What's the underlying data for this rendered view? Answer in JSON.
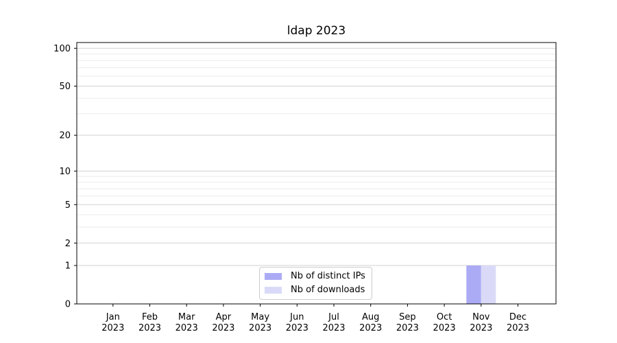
{
  "chart_data": {
    "type": "bar",
    "title": "ldap 2023",
    "categories": [
      "Jan 2023",
      "Feb 2023",
      "Mar 2023",
      "Apr 2023",
      "May 2023",
      "Jun 2023",
      "Jul 2023",
      "Aug 2023",
      "Sep 2023",
      "Oct 2023",
      "Nov 2023",
      "Dec 2023"
    ],
    "series": [
      {
        "name": "Nb of distinct IPs",
        "color": "#ababf5",
        "values": [
          0,
          0,
          0,
          0,
          0,
          0,
          0,
          0,
          0,
          0,
          1,
          0
        ]
      },
      {
        "name": "Nb of downloads",
        "color": "#dadaf8",
        "values": [
          0,
          0,
          0,
          0,
          0,
          0,
          0,
          0,
          0,
          0,
          1,
          0
        ]
      }
    ],
    "xlabel": "",
    "ylabel": "",
    "yscale": "log1p",
    "ylim": [
      0,
      111
    ],
    "y_major_ticks": [
      0,
      1,
      2,
      5,
      10,
      20,
      50,
      100
    ],
    "y_minor_gridlines": [
      3,
      4,
      6,
      7,
      8,
      9,
      30,
      40,
      60,
      70,
      80,
      90
    ],
    "grid": "horizontal",
    "legend_position": "lower center"
  },
  "style": {
    "axis_color": "#000000",
    "text_color": "#000000",
    "grid_major_color": "#d2d2d2",
    "grid_minor_color": "#ebebeb",
    "tick_font_px": 13
  }
}
